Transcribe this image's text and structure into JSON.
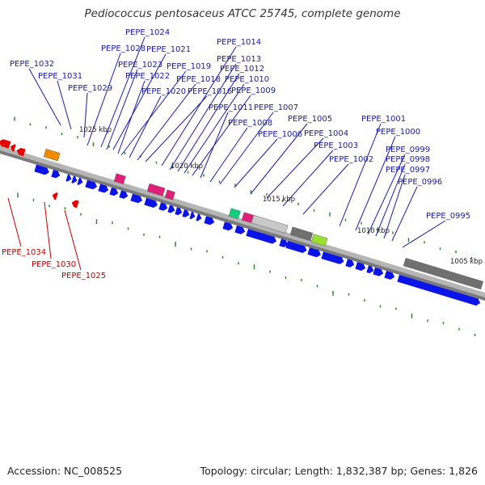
{
  "title": "Pediococcus pentosaceus ATCC 25745, complete genome",
  "footer": {
    "accession": "Accession: NC_008525",
    "summary": "Topology: circular; Length: 1,832,387 bp; Genes: 1,826"
  },
  "colors": {
    "forward_label": "#1a1aa6",
    "reverse_label": "#c00000",
    "forward_gene": "#0a14e6",
    "reverse_gene": "#e60000",
    "tick": "#2a8a2a",
    "backbone": "#a9a9a9"
  },
  "scale_labels": [
    "1025 kbp",
    "1020 kbp",
    "1015 kbp",
    "1010 kbp",
    "1005 kbp"
  ],
  "forward_genes": [
    "PEPE_1032",
    "PEPE_1031",
    "PEPE_1029",
    "PEPE_1028",
    "PEPE_1024",
    "PEPE_1023",
    "PEPE_1021",
    "PEPE_1022",
    "PEPE_1019",
    "PEPE_1020",
    "PEPE_1018",
    "PEPE_1016",
    "PEPE_1014",
    "PEPE_1013",
    "PEPE_1012",
    "PEPE_1010",
    "PEPE_1009",
    "PEPE_1011",
    "PEPE_1008",
    "PEPE_1007",
    "PEPE_1006",
    "PEPE_1005",
    "PEPE_1004",
    "PEPE_1003",
    "PEPE_1002",
    "PEPE_1001",
    "PEPE_1000",
    "PEPE_0999",
    "PEPE_0998",
    "PEPE_0997",
    "PEPE_0996",
    "PEPE_0995"
  ],
  "reverse_genes": [
    "PEPE_1034",
    "PEPE_1030",
    "PEPE_1025"
  ]
}
